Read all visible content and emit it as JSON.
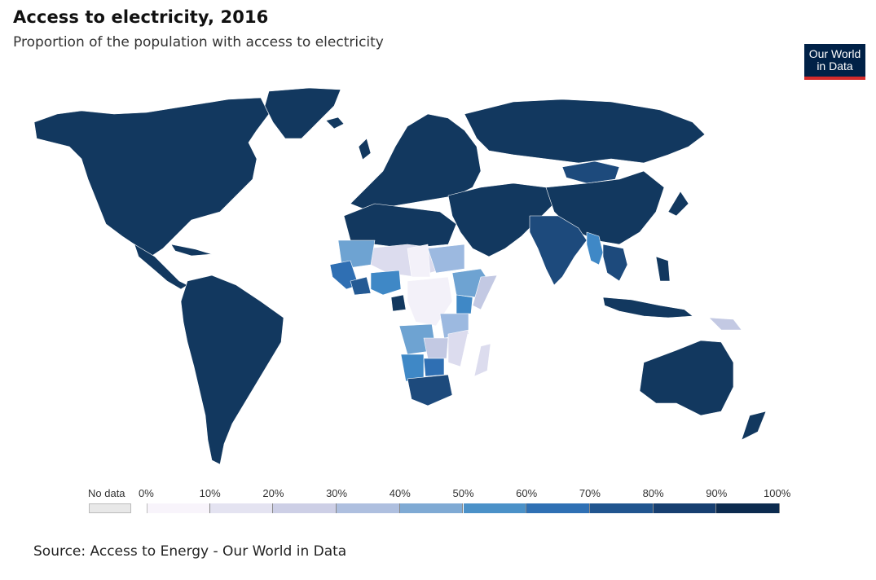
{
  "title": "Access to electricity, 2016",
  "subtitle": "Proportion of the population with access to electricity",
  "logo": {
    "line1": "Our World",
    "line2": "in Data"
  },
  "legend": {
    "no_data_label": "No data",
    "no_data_color": "#e8e8e8",
    "ticks": [
      "0%",
      "10%",
      "20%",
      "30%",
      "40%",
      "50%",
      "60%",
      "70%",
      "80%",
      "90%",
      "100%"
    ],
    "colors": [
      "#f8f4fb",
      "#e4e3f1",
      "#cdcfe6",
      "#aebfdf",
      "#7faad4",
      "#4b91c8",
      "#2f70b4",
      "#21558f",
      "#173f70",
      "#0c2b4f"
    ]
  },
  "source": "Source: Access to Energy - Our World in Data",
  "map_colors": {
    "high": "#12385f",
    "p80_90": "#1d4a7c",
    "p70_80": "#245a94",
    "p60_70": "#2f6fb3",
    "p50_60": "#3f88c6",
    "p40_50": "#6ea3d2",
    "p30_40": "#9cb9e0",
    "p20_30": "#c3c9e3",
    "p10_20": "#dcdcee",
    "p0_10": "#f3f1f9"
  }
}
